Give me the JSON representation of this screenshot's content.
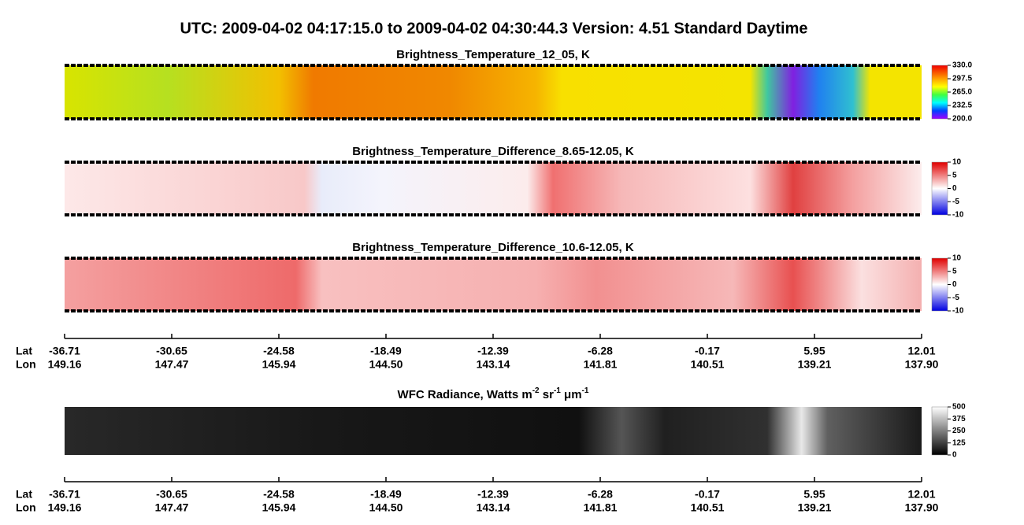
{
  "header": {
    "title": "UTC:  2009-04-02   04:17:15.0  to  2009-04-02   04:30:44.3    Version: 4.51  Standard Daytime"
  },
  "panels": [
    {
      "title": "Brightness_Temperature_12_05, K",
      "colorbar_ticks": [
        "330.0",
        "297.5",
        "265.0",
        "232.5",
        "200.0"
      ]
    },
    {
      "title": "Brightness_Temperature_Difference_8.65-12.05, K",
      "colorbar_ticks": [
        "10",
        "5",
        "0",
        "-5",
        "-10"
      ]
    },
    {
      "title": "Brightness_Temperature_Difference_10.6-12.05, K",
      "colorbar_ticks": [
        "10",
        "5",
        "0",
        "-5",
        "-10"
      ]
    },
    {
      "title_parts": [
        {
          "text": "WFC Radiance, Watts m"
        },
        {
          "text": "-2",
          "sup": true
        },
        {
          "text": " sr"
        },
        {
          "text": "-1",
          "sup": true
        },
        {
          "text": " μm"
        },
        {
          "text": "-1",
          "sup": true
        }
      ],
      "colorbar_ticks": [
        "500",
        "375",
        "250",
        "125",
        "0"
      ]
    }
  ],
  "axes": [
    {
      "lat_label": "Lat",
      "lon_label": "Lon",
      "lat": [
        "-36.71",
        "-30.65",
        "-24.58",
        "-18.49",
        "-12.39",
        "-6.28",
        "-0.17",
        "5.95",
        "12.01"
      ],
      "lon": [
        "149.16",
        "147.47",
        "145.94",
        "144.50",
        "143.14",
        "141.81",
        "140.51",
        "139.21",
        "137.90"
      ]
    },
    {
      "lat_label": "Lat",
      "lon_label": "Lon",
      "lat": [
        "-36.71",
        "-30.65",
        "-24.58",
        "-18.49",
        "-12.39",
        "-6.28",
        "-0.17",
        "5.95",
        "12.01"
      ],
      "lon": [
        "149.16",
        "147.47",
        "145.94",
        "144.50",
        "143.14",
        "141.81",
        "140.51",
        "139.21",
        "137.90"
      ]
    }
  ]
}
